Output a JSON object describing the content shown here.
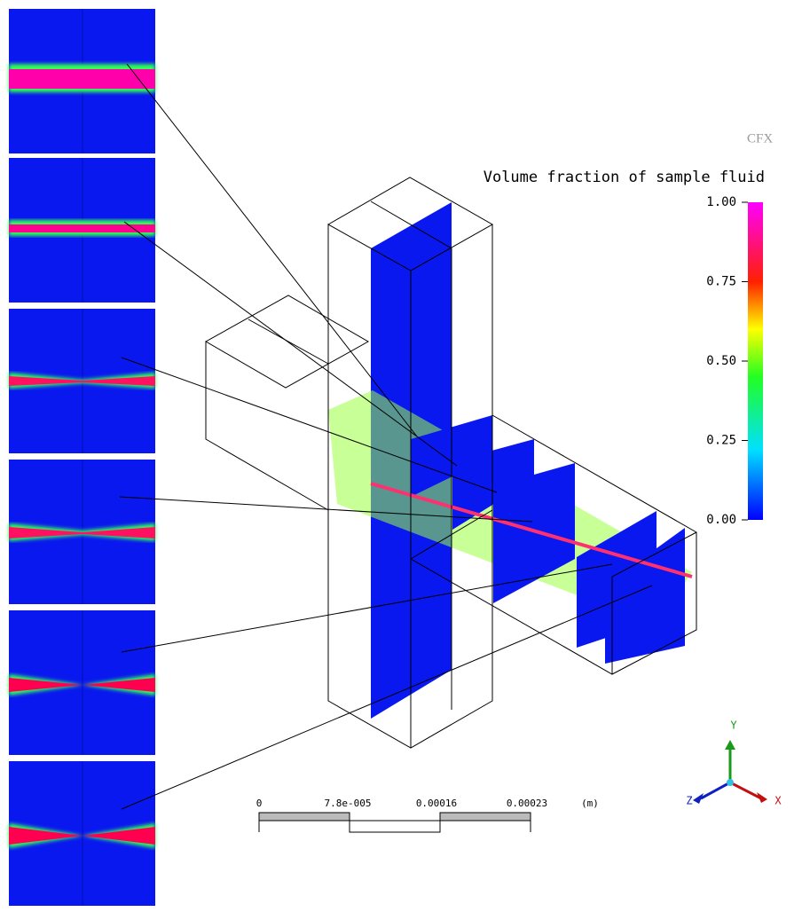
{
  "legend": {
    "title": "Volume fraction of sample fluid",
    "ticks": [
      {
        "value": 1,
        "label": "1.00"
      },
      {
        "value": 0.75,
        "label": "0.75"
      },
      {
        "value": 0.5,
        "label": "0.50"
      },
      {
        "value": 0.25,
        "label": "0.25"
      },
      {
        "value": 0,
        "label": "0.00"
      }
    ]
  },
  "logo": "CFX",
  "scale_bar": {
    "labels": [
      "0",
      "7.8e-005",
      "0.00016",
      "0.00023"
    ],
    "unit": "(m)"
  },
  "triad": {
    "x": "X",
    "y": "Y",
    "z": "Z"
  }
}
